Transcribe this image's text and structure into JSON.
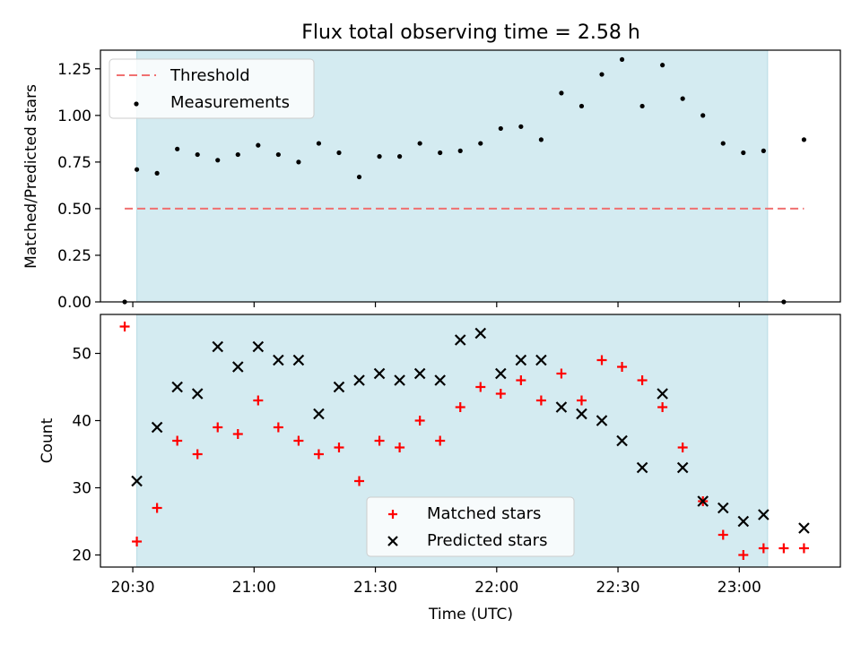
{
  "colors": {
    "span": "#d4ebf1",
    "threshold": "#f07070",
    "measurement": "#000000",
    "matched": "#ff0000",
    "predicted": "#000000"
  },
  "chart_data": [
    {
      "type": "scatter",
      "title": "Flux total observing time = 2.58 h",
      "ylabel": "Matched/Predicted stars",
      "xlabel": "",
      "xlim": [
        "20:22",
        "23:25"
      ],
      "ylim": [
        0,
        1.35
      ],
      "yticks": [
        0.0,
        0.25,
        0.5,
        0.75,
        1.0,
        1.25
      ],
      "ytick_labels": [
        "0.00",
        "0.25",
        "0.50",
        "0.75",
        "1.00",
        "1.25"
      ],
      "observing_span": [
        "20:31",
        "23:07"
      ],
      "threshold": {
        "name": "Threshold",
        "value": 0.5,
        "x": [
          "20:28",
          "23:16"
        ]
      },
      "legend": {
        "placement": "top-left",
        "entries": [
          "Threshold",
          "Measurements"
        ]
      },
      "series": [
        {
          "name": "Measurements",
          "x": [
            "20:28",
            "20:31",
            "20:36",
            "20:41",
            "20:46",
            "20:51",
            "20:56",
            "21:01",
            "21:06",
            "21:11",
            "21:16",
            "21:21",
            "21:26",
            "21:31",
            "21:36",
            "21:41",
            "21:46",
            "21:51",
            "21:56",
            "22:01",
            "22:06",
            "22:11",
            "22:16",
            "22:21",
            "22:26",
            "22:31",
            "22:36",
            "22:41",
            "22:46",
            "22:51",
            "22:56",
            "23:01",
            "23:06",
            "23:11",
            "23:16"
          ],
          "y": [
            0.0,
            0.71,
            0.69,
            0.82,
            0.79,
            0.76,
            0.79,
            0.84,
            0.79,
            0.75,
            0.85,
            0.8,
            0.67,
            0.78,
            0.78,
            0.85,
            0.8,
            0.81,
            0.85,
            0.93,
            0.94,
            0.87,
            1.12,
            1.05,
            1.22,
            1.3,
            1.05,
            1.27,
            1.09,
            1.0,
            0.85,
            0.8,
            0.81,
            0.0,
            0.87
          ]
        }
      ]
    },
    {
      "type": "scatter",
      "title": "",
      "ylabel": "Count",
      "xlabel": "Time (UTC)",
      "xlim": [
        "20:22",
        "23:25"
      ],
      "xticks": [
        "20:30",
        "21:00",
        "21:30",
        "22:00",
        "22:30",
        "23:00"
      ],
      "ylim": [
        18.2,
        55.8
      ],
      "yticks": [
        20,
        30,
        40,
        50
      ],
      "observing_span": [
        "20:31",
        "23:07"
      ],
      "legend": {
        "placement": "lower-center",
        "entries": [
          "Matched stars",
          "Predicted stars"
        ]
      },
      "series": [
        {
          "name": "Matched stars",
          "marker": "plus",
          "x": [
            "20:28",
            "20:31",
            "20:36",
            "20:41",
            "20:46",
            "20:51",
            "20:56",
            "21:01",
            "21:06",
            "21:11",
            "21:16",
            "21:21",
            "21:26",
            "21:31",
            "21:36",
            "21:41",
            "21:46",
            "21:51",
            "21:56",
            "22:01",
            "22:06",
            "22:11",
            "22:16",
            "22:21",
            "22:26",
            "22:31",
            "22:36",
            "22:41",
            "22:46",
            "22:51",
            "22:56",
            "23:01",
            "23:06",
            "23:11",
            "23:16"
          ],
          "y": [
            54,
            22,
            27,
            37,
            35,
            39,
            38,
            43,
            39,
            37,
            35,
            36,
            31,
            37,
            36,
            40,
            37,
            42,
            45,
            44,
            46,
            43,
            47,
            43,
            49,
            48,
            46,
            42,
            36,
            28,
            23,
            20,
            21,
            21,
            21
          ]
        },
        {
          "name": "Predicted stars",
          "marker": "x",
          "x": [
            "20:31",
            "20:36",
            "20:41",
            "20:46",
            "20:51",
            "20:56",
            "21:01",
            "21:06",
            "21:11",
            "21:16",
            "21:21",
            "21:26",
            "21:31",
            "21:36",
            "21:41",
            "21:46",
            "21:51",
            "21:56",
            "22:01",
            "22:06",
            "22:11",
            "22:16",
            "22:21",
            "22:26",
            "22:31",
            "22:36",
            "22:41",
            "22:46",
            "22:51",
            "22:56",
            "23:01",
            "23:06",
            "23:16"
          ],
          "y": [
            31,
            39,
            45,
            44,
            51,
            48,
            51,
            49,
            49,
            41,
            45,
            46,
            47,
            46,
            47,
            46,
            52,
            53,
            47,
            49,
            49,
            42,
            41,
            40,
            37,
            33,
            44,
            33,
            28,
            27,
            25,
            26,
            24
          ]
        }
      ]
    }
  ]
}
